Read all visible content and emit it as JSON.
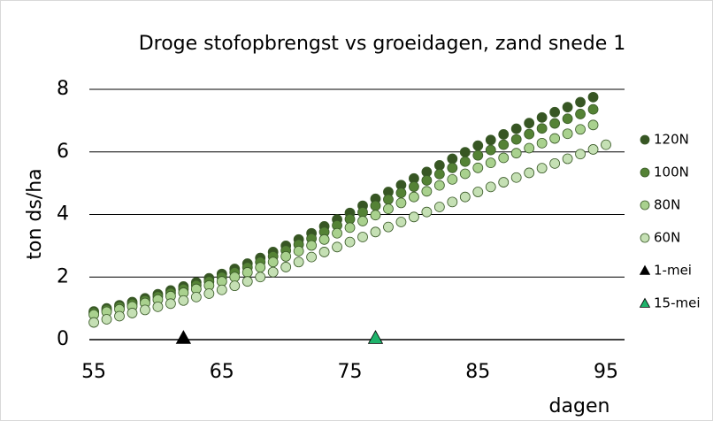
{
  "chart_data": {
    "type": "scatter",
    "title": "Droge stofopbrengst vs groeidagen, zand snede 1",
    "x_label": "dagen",
    "y_label": "ton ds/ha",
    "xlim": [
      54.65,
      96.45
    ],
    "ylim": [
      0,
      8
    ],
    "xticks": [
      55,
      65,
      75,
      85,
      95
    ],
    "yticks": [
      0,
      2,
      4,
      6,
      8
    ],
    "grid": true,
    "legend": "right",
    "series": [
      {
        "name": "120N",
        "color": "#375623",
        "marker": "circle",
        "x": [
          55,
          56,
          57,
          58,
          59,
          60,
          61,
          62,
          63,
          64,
          65,
          66,
          67,
          68,
          69,
          70,
          71,
          72,
          73,
          74,
          75,
          76,
          77,
          78,
          79,
          80,
          81,
          82,
          83,
          84,
          85,
          86,
          87,
          88,
          89,
          90,
          91,
          92,
          93,
          94
        ],
        "values": [
          0.9,
          1.0,
          1.1,
          1.2,
          1.32,
          1.45,
          1.57,
          1.7,
          1.83,
          1.96,
          2.1,
          2.26,
          2.43,
          2.61,
          2.8,
          3.0,
          3.2,
          3.4,
          3.62,
          3.84,
          4.05,
          4.28,
          4.5,
          4.72,
          4.94,
          5.15,
          5.36,
          5.57,
          5.78,
          5.99,
          6.2,
          6.38,
          6.56,
          6.74,
          6.92,
          7.1,
          7.27,
          7.43,
          7.59,
          7.75
        ]
      },
      {
        "name": "100N",
        "color": "#548235",
        "marker": "circle",
        "x": [
          55,
          56,
          57,
          58,
          59,
          60,
          61,
          62,
          63,
          64,
          65,
          66,
          67,
          68,
          69,
          70,
          71,
          72,
          73,
          74,
          75,
          76,
          77,
          78,
          79,
          80,
          81,
          82,
          83,
          84,
          85,
          86,
          87,
          88,
          89,
          90,
          91,
          92,
          93,
          94
        ],
        "values": [
          0.86,
          0.95,
          1.05,
          1.14,
          1.25,
          1.38,
          1.49,
          1.62,
          1.74,
          1.86,
          2.0,
          2.15,
          2.31,
          2.48,
          2.66,
          2.85,
          3.04,
          3.23,
          3.44,
          3.65,
          3.85,
          4.07,
          4.28,
          4.48,
          4.69,
          4.89,
          5.09,
          5.29,
          5.49,
          5.69,
          5.89,
          6.06,
          6.23,
          6.4,
          6.57,
          6.75,
          6.91,
          7.06,
          7.21,
          7.36
        ]
      },
      {
        "name": "80N",
        "color": "#a9d18e",
        "marker": "circle",
        "x": [
          55,
          56,
          57,
          58,
          59,
          60,
          61,
          62,
          63,
          64,
          65,
          66,
          67,
          68,
          69,
          70,
          71,
          72,
          73,
          74,
          75,
          76,
          77,
          78,
          79,
          80,
          81,
          82,
          83,
          84,
          85,
          86,
          87,
          88,
          89,
          90,
          91,
          92,
          93,
          94
        ],
        "values": [
          0.8,
          0.89,
          0.97,
          1.06,
          1.17,
          1.28,
          1.39,
          1.5,
          1.62,
          1.73,
          1.86,
          2.0,
          2.15,
          2.31,
          2.48,
          2.66,
          2.83,
          3.01,
          3.2,
          3.4,
          3.58,
          3.79,
          3.98,
          4.18,
          4.37,
          4.56,
          4.74,
          4.93,
          5.12,
          5.3,
          5.49,
          5.65,
          5.81,
          5.96,
          6.12,
          6.28,
          6.43,
          6.58,
          6.72,
          6.86
        ]
      },
      {
        "name": "60N",
        "color": "#c5e0b4",
        "marker": "circle",
        "x": [
          55,
          56,
          57,
          58,
          59,
          60,
          61,
          62,
          63,
          64,
          65,
          66,
          67,
          68,
          69,
          70,
          71,
          72,
          73,
          74,
          75,
          76,
          77,
          78,
          79,
          80,
          81,
          82,
          83,
          84,
          85,
          86,
          87,
          88,
          89,
          90,
          91,
          92,
          93,
          94,
          95
        ],
        "values": [
          0.55,
          0.65,
          0.75,
          0.85,
          0.95,
          1.05,
          1.15,
          1.25,
          1.36,
          1.47,
          1.59,
          1.72,
          1.86,
          2.0,
          2.16,
          2.32,
          2.48,
          2.64,
          2.8,
          2.96,
          3.12,
          3.28,
          3.44,
          3.6,
          3.76,
          3.92,
          4.08,
          4.24,
          4.4,
          4.56,
          4.72,
          4.88,
          5.03,
          5.18,
          5.33,
          5.48,
          5.63,
          5.78,
          5.93,
          6.08,
          6.23
        ]
      },
      {
        "name": "1-mei",
        "color": "#000000",
        "marker": "triangle",
        "x": [
          62
        ],
        "values": [
          0
        ]
      },
      {
        "name": "15-mei",
        "color": "#1fb36b",
        "marker": "triangle",
        "x": [
          77
        ],
        "values": [
          0
        ]
      }
    ]
  }
}
